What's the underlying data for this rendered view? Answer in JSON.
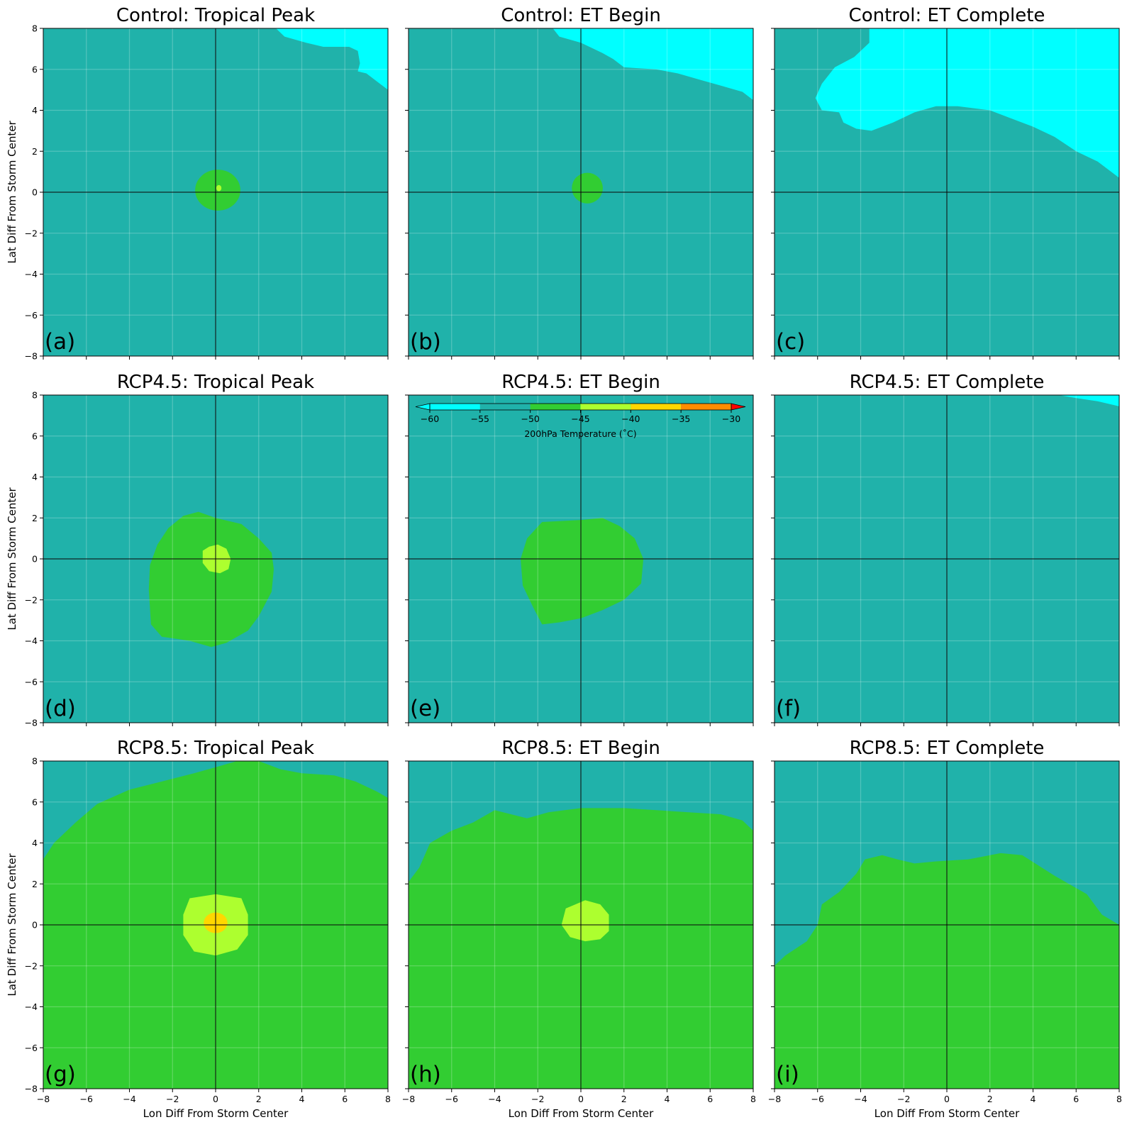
{
  "figure": {
    "colorbar": {
      "label": "200hPa Temperature ($^\\circ$C)",
      "label_display": "200hPa Temperature (˚C)",
      "ticks": [
        "−60",
        "−55",
        "−50",
        "−45",
        "−40",
        "−35",
        "−30"
      ],
      "levels": [
        -60,
        -55,
        -50,
        -45,
        -40,
        -35,
        -30
      ],
      "colors": [
        "#00FFFF",
        "#20B2AA",
        "#32CD32",
        "#ADFF2F",
        "#FFD700",
        "#FF8C00",
        "#FF0000"
      ],
      "extend": "both"
    },
    "colors": {
      "cyan": "#00FFFF",
      "teal": "#20B2AA",
      "green": "#32CD32",
      "yellowgreen": "#ADFF2F",
      "gold": "#FFD700"
    }
  },
  "chart_data": [
    {
      "type": "contour",
      "panel": "a",
      "panel_label": "(a)",
      "title": "Control: Tropical Peak",
      "xlabel": "",
      "ylabel": "Lat Diff From Storm Center",
      "xlim": [
        -8,
        8
      ],
      "ylim": [
        -8,
        8
      ],
      "x_ticks": [],
      "y_ticks": [
        "8",
        "6",
        "4",
        "2",
        "0",
        "−2",
        "−4",
        "−6",
        "−8"
      ],
      "grid": true,
      "background": "teal",
      "regions": [
        {
          "color": "cyan",
          "points": [
            [
              2.8,
              8
            ],
            [
              3.2,
              7.6
            ],
            [
              4.2,
              7.3
            ],
            [
              5,
              7.1
            ],
            [
              6.2,
              7.1
            ],
            [
              6.6,
              6.9
            ],
            [
              6.7,
              6.3
            ],
            [
              6.6,
              5.9
            ],
            [
              7,
              5.8
            ],
            [
              7.5,
              5.4
            ],
            [
              8,
              5
            ],
            [
              8,
              8
            ]
          ]
        },
        {
          "color": "green",
          "ellipse": {
            "cx": 0.1,
            "cy": 0.1,
            "rx": 1.05,
            "ry": 1.0
          }
        },
        {
          "color": "yellowgreen",
          "ellipse": {
            "cx": 0.15,
            "cy": 0.2,
            "rx": 0.12,
            "ry": 0.15
          }
        }
      ]
    },
    {
      "type": "contour",
      "panel": "b",
      "panel_label": "(b)",
      "title": "Control: ET Begin",
      "xlabel": "",
      "ylabel": "",
      "xlim": [
        -8,
        8
      ],
      "ylim": [
        -8,
        8
      ],
      "x_ticks": [],
      "y_ticks": [],
      "grid": true,
      "background": "teal",
      "regions": [
        {
          "color": "cyan",
          "points": [
            [
              -1.3,
              8
            ],
            [
              -1,
              7.6
            ],
            [
              0,
              7.3
            ],
            [
              1,
              6.8
            ],
            [
              1.5,
              6.5
            ],
            [
              2,
              6.1
            ],
            [
              3.5,
              6
            ],
            [
              4.5,
              5.8
            ],
            [
              5.5,
              5.5
            ],
            [
              6.5,
              5.2
            ],
            [
              7.5,
              4.9
            ],
            [
              8,
              4.5
            ],
            [
              8,
              8
            ]
          ]
        },
        {
          "color": "green",
          "ellipse": {
            "cx": 0.3,
            "cy": 0.2,
            "rx": 0.72,
            "ry": 0.75
          }
        }
      ]
    },
    {
      "type": "contour",
      "panel": "c",
      "panel_label": "(c)",
      "title": "Control: ET Complete",
      "xlabel": "",
      "ylabel": "",
      "xlim": [
        -8,
        8
      ],
      "ylim": [
        -8,
        8
      ],
      "x_ticks": [],
      "y_ticks": [],
      "grid": true,
      "background": "teal",
      "regions": [
        {
          "color": "cyan",
          "points": [
            [
              -3.6,
              8
            ],
            [
              -3.6,
              7.3
            ],
            [
              -4.3,
              6.6
            ],
            [
              -5.2,
              6.1
            ],
            [
              -5.8,
              5.3
            ],
            [
              -6.1,
              4.6
            ],
            [
              -5.8,
              4
            ],
            [
              -5,
              3.9
            ],
            [
              -4.8,
              3.4
            ],
            [
              -4.2,
              3.1
            ],
            [
              -3.5,
              3
            ],
            [
              -2.5,
              3.4
            ],
            [
              -1.5,
              3.9
            ],
            [
              -0.5,
              4.2
            ],
            [
              0.5,
              4.2
            ],
            [
              2,
              4
            ],
            [
              3,
              3.6
            ],
            [
              4,
              3.2
            ],
            [
              5,
              2.7
            ],
            [
              6,
              2
            ],
            [
              7,
              1.5
            ],
            [
              8,
              0.7
            ],
            [
              8,
              8
            ]
          ]
        }
      ]
    },
    {
      "type": "contour",
      "panel": "d",
      "panel_label": "(d)",
      "title": "RCP4.5: Tropical Peak",
      "xlabel": "",
      "ylabel": "Lat Diff From Storm Center",
      "xlim": [
        -8,
        8
      ],
      "ylim": [
        -8,
        8
      ],
      "x_ticks": [],
      "y_ticks": [
        "8",
        "6",
        "4",
        "2",
        "0",
        "−2",
        "−4",
        "−6",
        "−8"
      ],
      "grid": true,
      "background": "teal",
      "regions": [
        {
          "color": "green",
          "points": [
            [
              -0.8,
              2.3
            ],
            [
              0,
              2
            ],
            [
              1.2,
              1.7
            ],
            [
              2,
              1
            ],
            [
              2.6,
              0.3
            ],
            [
              2.7,
              -0.5
            ],
            [
              2.6,
              -1.6
            ],
            [
              2,
              -2.8
            ],
            [
              1.5,
              -3.5
            ],
            [
              0.5,
              -4.1
            ],
            [
              -0.2,
              -4.3
            ],
            [
              -1.2,
              -4
            ],
            [
              -2.5,
              -3.8
            ],
            [
              -3,
              -3.2
            ],
            [
              -3.1,
              -1.5
            ],
            [
              -3.05,
              -0.3
            ],
            [
              -2.7,
              0.7
            ],
            [
              -2.2,
              1.5
            ],
            [
              -1.5,
              2.1
            ]
          ]
        },
        {
          "color": "yellowgreen",
          "points": [
            [
              -0.6,
              0.4
            ],
            [
              -0.3,
              0.6
            ],
            [
              0.1,
              0.7
            ],
            [
              0.5,
              0.5
            ],
            [
              0.7,
              0
            ],
            [
              0.6,
              -0.5
            ],
            [
              0.2,
              -0.7
            ],
            [
              -0.3,
              -0.6
            ],
            [
              -0.6,
              -0.2
            ]
          ]
        }
      ]
    },
    {
      "type": "contour",
      "panel": "e",
      "panel_label": "(e)",
      "title": "RCP4.5: ET Begin",
      "xlabel": "",
      "ylabel": "",
      "xlim": [
        -8,
        8
      ],
      "ylim": [
        -8,
        8
      ],
      "x_ticks": [],
      "y_ticks": [],
      "grid": true,
      "background": "teal",
      "regions": [
        {
          "color": "green",
          "points": [
            [
              -1.8,
              1.8
            ],
            [
              0,
              1.9
            ],
            [
              1,
              2
            ],
            [
              1.8,
              1.6
            ],
            [
              2.5,
              1
            ],
            [
              2.9,
              0
            ],
            [
              2.8,
              -1.2
            ],
            [
              2,
              -2
            ],
            [
              1,
              -2.5
            ],
            [
              0,
              -2.9
            ],
            [
              -1,
              -3.1
            ],
            [
              -1.8,
              -3.2
            ],
            [
              -2.2,
              -2.4
            ],
            [
              -2.7,
              -1.3
            ],
            [
              -2.8,
              0
            ],
            [
              -2.5,
              1
            ]
          ]
        }
      ]
    },
    {
      "type": "contour",
      "panel": "f",
      "panel_label": "(f)",
      "title": "RCP4.5: ET Complete",
      "xlabel": "",
      "ylabel": "",
      "xlim": [
        -8,
        8
      ],
      "ylim": [
        -8,
        8
      ],
      "x_ticks": [],
      "y_ticks": [],
      "grid": true,
      "background": "teal",
      "regions": [
        {
          "color": "cyan",
          "points": [
            [
              5.2,
              8
            ],
            [
              6,
              7.85
            ],
            [
              7,
              7.7
            ],
            [
              8,
              7.45
            ],
            [
              8,
              8
            ]
          ]
        }
      ]
    },
    {
      "type": "contour",
      "panel": "g",
      "panel_label": "(g)",
      "title": "RCP8.5: Tropical Peak",
      "xlabel": "Lon Diff From Storm Center",
      "ylabel": "Lat Diff From Storm Center",
      "xlim": [
        -8,
        8
      ],
      "ylim": [
        -8,
        8
      ],
      "x_ticks": [
        "−8",
        "−6",
        "−4",
        "−2",
        "0",
        "2",
        "4",
        "6",
        "8"
      ],
      "y_ticks": [
        "8",
        "6",
        "4",
        "2",
        "0",
        "−2",
        "−4",
        "−6",
        "−8"
      ],
      "grid": true,
      "background": "green",
      "regions": [
        {
          "color": "teal",
          "points": [
            [
              -8,
              8
            ],
            [
              1,
              8
            ],
            [
              0,
              7.7
            ],
            [
              -1,
              7.4
            ],
            [
              -2.5,
              7
            ],
            [
              -4,
              6.6
            ],
            [
              -5.5,
              5.9
            ],
            [
              -6.5,
              5
            ],
            [
              -7.5,
              4
            ],
            [
              -8,
              3.2
            ]
          ]
        },
        {
          "color": "teal",
          "points": [
            [
              2,
              8
            ],
            [
              3,
              7.6
            ],
            [
              4,
              7.4
            ],
            [
              5.5,
              7.3
            ],
            [
              6.5,
              7
            ],
            [
              7.5,
              6.5
            ],
            [
              8,
              6.2
            ],
            [
              8,
              8
            ]
          ]
        },
        {
          "color": "yellowgreen",
          "points": [
            [
              -1.2,
              1.3
            ],
            [
              0,
              1.5
            ],
            [
              1.2,
              1.3
            ],
            [
              1.5,
              0.5
            ],
            [
              1.5,
              -0.5
            ],
            [
              1,
              -1.2
            ],
            [
              0,
              -1.5
            ],
            [
              -1,
              -1.3
            ],
            [
              -1.5,
              -0.5
            ],
            [
              -1.5,
              0.5
            ]
          ]
        },
        {
          "color": "gold",
          "ellipse": {
            "cx": 0.0,
            "cy": 0.1,
            "rx": 0.55,
            "ry": 0.5
          }
        }
      ]
    },
    {
      "type": "contour",
      "panel": "h",
      "panel_label": "(h)",
      "title": "RCP8.5: ET Begin",
      "xlabel": "Lon Diff From Storm Center",
      "ylabel": "",
      "xlim": [
        -8,
        8
      ],
      "ylim": [
        -8,
        8
      ],
      "x_ticks": [
        "−8",
        "−6",
        "−4",
        "−2",
        "0",
        "2",
        "4",
        "6",
        "8"
      ],
      "y_ticks": [],
      "grid": true,
      "background": "green",
      "regions": [
        {
          "color": "teal",
          "points": [
            [
              -8,
              8
            ],
            [
              8,
              8
            ],
            [
              8,
              4.6
            ],
            [
              7.5,
              5.1
            ],
            [
              6.5,
              5.4
            ],
            [
              5,
              5.5
            ],
            [
              3.5,
              5.6
            ],
            [
              2,
              5.7
            ],
            [
              0,
              5.7
            ],
            [
              -1.5,
              5.5
            ],
            [
              -2.5,
              5.2
            ],
            [
              -4,
              5.6
            ],
            [
              -5,
              5
            ],
            [
              -6,
              4.6
            ],
            [
              -7,
              4
            ],
            [
              -7.5,
              2.8
            ],
            [
              -8,
              2.1
            ]
          ]
        },
        {
          "color": "yellowgreen",
          "points": [
            [
              -0.7,
              0.8
            ],
            [
              0.2,
              1.2
            ],
            [
              0.9,
              1
            ],
            [
              1.3,
              0.5
            ],
            [
              1.3,
              -0.3
            ],
            [
              0.9,
              -0.7
            ],
            [
              0.2,
              -0.8
            ],
            [
              -0.5,
              -0.6
            ],
            [
              -0.9,
              0
            ]
          ]
        }
      ]
    },
    {
      "type": "contour",
      "panel": "i",
      "panel_label": "(i)",
      "title": "RCP8.5: ET Complete",
      "xlabel": "Lon Diff From Storm Center",
      "ylabel": "",
      "xlim": [
        -8,
        8
      ],
      "ylim": [
        -8,
        8
      ],
      "x_ticks": [
        "−8",
        "−6",
        "−4",
        "−2",
        "0",
        "2",
        "4",
        "6",
        "8"
      ],
      "y_ticks": [],
      "grid": true,
      "background": "green",
      "regions": [
        {
          "color": "teal",
          "points": [
            [
              -8,
              8
            ],
            [
              8,
              8
            ],
            [
              8,
              0
            ],
            [
              7.2,
              0.5
            ],
            [
              6.5,
              1.5
            ],
            [
              5,
              2.4
            ],
            [
              3.5,
              3.4
            ],
            [
              2.5,
              3.5
            ],
            [
              1,
              3.2
            ],
            [
              -0.5,
              3.1
            ],
            [
              -1.5,
              3
            ],
            [
              -2.3,
              3.2
            ],
            [
              -3,
              3.4
            ],
            [
              -3.8,
              3.2
            ],
            [
              -4.2,
              2.5
            ],
            [
              -5,
              1.6
            ],
            [
              -5.8,
              1
            ],
            [
              -6,
              0
            ],
            [
              -6.5,
              -0.8
            ],
            [
              -7.5,
              -1.5
            ],
            [
              -8,
              -2
            ]
          ]
        }
      ]
    }
  ]
}
